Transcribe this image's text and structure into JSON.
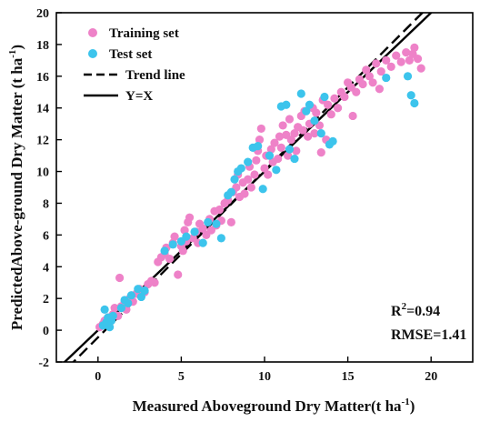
{
  "chart_data": {
    "type": "scatter",
    "xlabel": "Measured  Aboveground  Dry Matter(t ha",
    "xlabel_sup": "-1",
    "xlabel_end": ")",
    "ylabel": "PredictedAbove-ground  Dry Matter  (t ha",
    "ylabel_sup": "-1",
    "ylabel_end": ")",
    "xlim": [
      -2.5,
      22.5
    ],
    "ylim": [
      -2,
      20
    ],
    "x_ticks": [
      0,
      5,
      10,
      15,
      20
    ],
    "y_ticks": [
      -2,
      0,
      2,
      4,
      6,
      8,
      10,
      12,
      14,
      16,
      18,
      20
    ],
    "grid": false,
    "legend_position": "top-left",
    "legend": {
      "training": "Training set",
      "test": "Test set",
      "trend": "Trend line",
      "identity": "Y=X"
    },
    "colors": {
      "training": "#ee82c8",
      "test": "#3cc4ec",
      "lines": "#000000"
    },
    "stats": {
      "r2_label": "R",
      "r2_sup": "2",
      "r2_value": "=0.94",
      "rmse": "RMSE=1.41"
    },
    "trend_line": {
      "slope": 1.05,
      "intercept": -0.45
    },
    "series": [
      {
        "name": "Training set",
        "points": [
          [
            0.1,
            0.2
          ],
          [
            0.3,
            0.4
          ],
          [
            0.4,
            0.6
          ],
          [
            0.6,
            0.8
          ],
          [
            0.7,
            0.5
          ],
          [
            0.9,
            1.0
          ],
          [
            1.0,
            1.4
          ],
          [
            1.2,
            0.9
          ],
          [
            1.3,
            3.3
          ],
          [
            1.4,
            1.5
          ],
          [
            1.6,
            1.8
          ],
          [
            1.7,
            1.3
          ],
          [
            1.9,
            2.0
          ],
          [
            2.1,
            1.8
          ],
          [
            2.3,
            2.3
          ],
          [
            2.5,
            2.6
          ],
          [
            2.8,
            2.4
          ],
          [
            3.0,
            2.9
          ],
          [
            3.2,
            3.1
          ],
          [
            3.4,
            3.0
          ],
          [
            3.6,
            4.3
          ],
          [
            3.8,
            4.6
          ],
          [
            4.0,
            4.8
          ],
          [
            4.1,
            5.2
          ],
          [
            4.3,
            4.5
          ],
          [
            4.5,
            5.5
          ],
          [
            4.6,
            5.9
          ],
          [
            4.8,
            3.5
          ],
          [
            5.0,
            5.3
          ],
          [
            5.1,
            5.0
          ],
          [
            5.2,
            6.3
          ],
          [
            5.3,
            5.6
          ],
          [
            5.4,
            6.8
          ],
          [
            5.5,
            7.1
          ],
          [
            5.7,
            5.8
          ],
          [
            5.9,
            6.2
          ],
          [
            6.0,
            5.5
          ],
          [
            6.1,
            6.7
          ],
          [
            6.3,
            6.4
          ],
          [
            6.5,
            6.0
          ],
          [
            6.7,
            7.0
          ],
          [
            6.8,
            6.3
          ],
          [
            7.0,
            7.5
          ],
          [
            7.1,
            6.6
          ],
          [
            7.3,
            7.6
          ],
          [
            7.4,
            6.9
          ],
          [
            7.6,
            8.0
          ],
          [
            7.8,
            8.2
          ],
          [
            8.0,
            6.8
          ],
          [
            8.1,
            8.7
          ],
          [
            8.3,
            9.0
          ],
          [
            8.4,
            9.8
          ],
          [
            8.5,
            8.4
          ],
          [
            8.7,
            9.3
          ],
          [
            8.8,
            8.6
          ],
          [
            9.0,
            9.5
          ],
          [
            9.1,
            10.3
          ],
          [
            9.2,
            9.0
          ],
          [
            9.4,
            9.8
          ],
          [
            9.5,
            10.7
          ],
          [
            9.6,
            11.3
          ],
          [
            9.7,
            12.0
          ],
          [
            9.8,
            12.7
          ],
          [
            10.0,
            10.2
          ],
          [
            10.1,
            11.0
          ],
          [
            10.2,
            9.8
          ],
          [
            10.4,
            11.4
          ],
          [
            10.5,
            10.6
          ],
          [
            10.6,
            11.8
          ],
          [
            10.8,
            10.8
          ],
          [
            10.9,
            12.2
          ],
          [
            11.0,
            11.5
          ],
          [
            11.1,
            12.9
          ],
          [
            11.3,
            12.3
          ],
          [
            11.4,
            11.0
          ],
          [
            11.5,
            13.3
          ],
          [
            11.6,
            12.0
          ],
          [
            11.8,
            12.4
          ],
          [
            11.9,
            11.3
          ],
          [
            12.0,
            12.8
          ],
          [
            12.2,
            13.5
          ],
          [
            12.3,
            12.6
          ],
          [
            12.4,
            13.8
          ],
          [
            12.6,
            12.2
          ],
          [
            12.7,
            13.0
          ],
          [
            12.9,
            14.0
          ],
          [
            13.0,
            12.4
          ],
          [
            13.1,
            13.7
          ],
          [
            13.3,
            12.9
          ],
          [
            13.4,
            11.2
          ],
          [
            13.5,
            14.5
          ],
          [
            13.7,
            12.0
          ],
          [
            13.8,
            14.2
          ],
          [
            14.0,
            13.6
          ],
          [
            14.2,
            14.6
          ],
          [
            14.4,
            14.0
          ],
          [
            14.6,
            15.0
          ],
          [
            14.8,
            14.7
          ],
          [
            15.0,
            15.6
          ],
          [
            15.2,
            15.3
          ],
          [
            15.3,
            13.5
          ],
          [
            15.5,
            15.0
          ],
          [
            15.7,
            15.8
          ],
          [
            15.9,
            15.5
          ],
          [
            16.1,
            16.4
          ],
          [
            16.3,
            16.0
          ],
          [
            16.5,
            15.6
          ],
          [
            16.7,
            16.8
          ],
          [
            16.9,
            15.2
          ],
          [
            17.0,
            16.3
          ],
          [
            17.3,
            17.0
          ],
          [
            17.6,
            16.6
          ],
          [
            17.9,
            17.3
          ],
          [
            18.2,
            16.9
          ],
          [
            18.5,
            17.5
          ],
          [
            18.7,
            17.0
          ],
          [
            18.9,
            17.4
          ],
          [
            19.0,
            17.8
          ],
          [
            19.2,
            17.1
          ],
          [
            19.4,
            16.5
          ]
        ]
      },
      {
        "name": "Test set",
        "points": [
          [
            0.3,
            0.3
          ],
          [
            0.4,
            1.3
          ],
          [
            0.5,
            0.5
          ],
          [
            0.6,
            0.8
          ],
          [
            0.7,
            0.2
          ],
          [
            0.8,
            0.6
          ],
          [
            0.9,
            0.9
          ],
          [
            1.4,
            1.4
          ],
          [
            1.6,
            1.9
          ],
          [
            1.8,
            1.7
          ],
          [
            2.0,
            2.2
          ],
          [
            2.4,
            2.6
          ],
          [
            2.6,
            2.1
          ],
          [
            2.8,
            2.5
          ],
          [
            4.0,
            5.0
          ],
          [
            4.5,
            5.4
          ],
          [
            5.0,
            5.6
          ],
          [
            5.3,
            5.9
          ],
          [
            5.8,
            6.2
          ],
          [
            6.3,
            5.5
          ],
          [
            6.6,
            6.8
          ],
          [
            7.1,
            6.7
          ],
          [
            7.4,
            5.8
          ],
          [
            7.8,
            8.5
          ],
          [
            8.0,
            8.7
          ],
          [
            8.2,
            9.5
          ],
          [
            8.4,
            10.0
          ],
          [
            8.6,
            10.2
          ],
          [
            9.0,
            10.6
          ],
          [
            9.3,
            11.5
          ],
          [
            9.6,
            11.6
          ],
          [
            9.9,
            8.9
          ],
          [
            10.3,
            11.0
          ],
          [
            10.7,
            10.1
          ],
          [
            11.0,
            14.1
          ],
          [
            11.3,
            14.2
          ],
          [
            11.5,
            11.4
          ],
          [
            11.8,
            10.8
          ],
          [
            12.2,
            14.9
          ],
          [
            12.5,
            13.8
          ],
          [
            12.7,
            14.2
          ],
          [
            13.0,
            13.2
          ],
          [
            13.4,
            12.4
          ],
          [
            13.6,
            14.7
          ],
          [
            13.9,
            11.7
          ],
          [
            14.1,
            11.9
          ],
          [
            17.3,
            15.9
          ],
          [
            18.6,
            16.0
          ],
          [
            18.8,
            14.8
          ],
          [
            19.0,
            14.3
          ]
        ]
      }
    ]
  }
}
